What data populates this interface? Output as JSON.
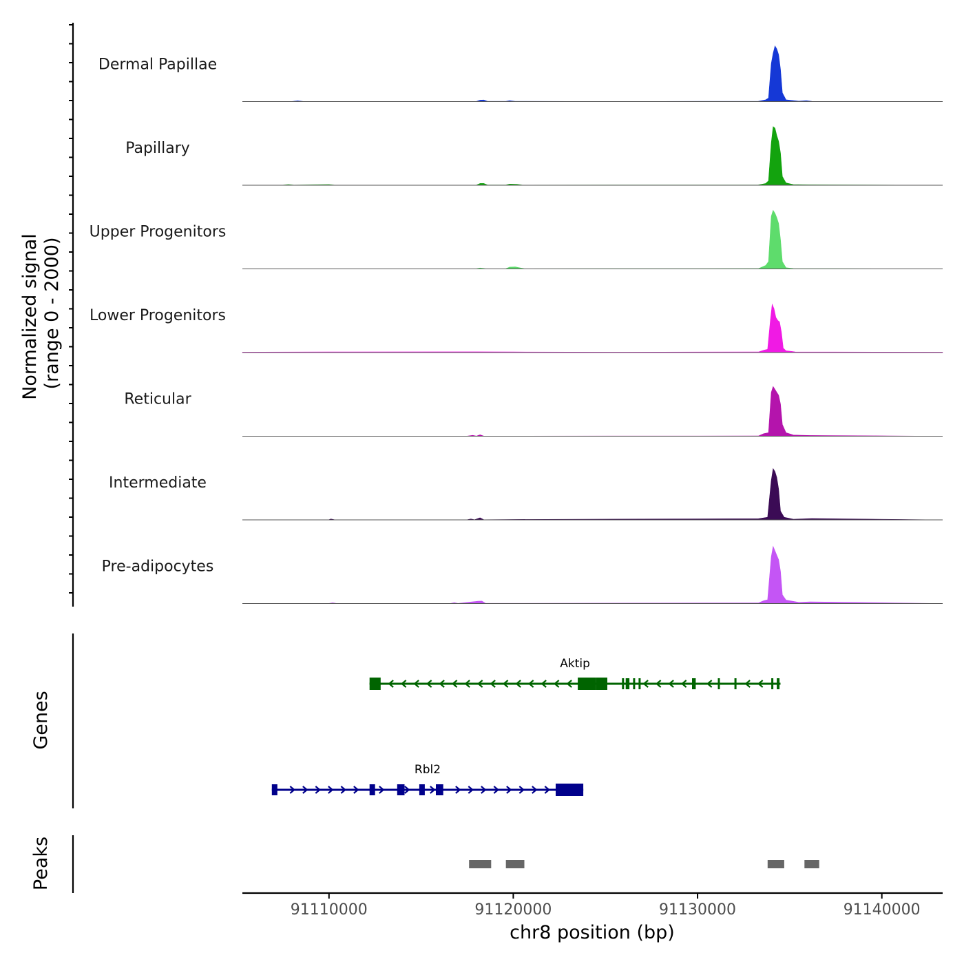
{
  "chart_data": {
    "type": "area",
    "title": "",
    "chromosome": "chr8",
    "xlabel": "chr8 position (bp)",
    "ylabel_line1": "Normalized signal",
    "ylabel_line2": "(range 0 - 2000)",
    "xlim": [
      91105300,
      91143300
    ],
    "x_ticks": [
      91110000,
      91120000,
      91130000,
      91140000
    ],
    "x_tick_labels": [
      "91110000",
      "91120000",
      "91130000",
      "91140000"
    ],
    "signal_range": [
      0,
      2000
    ],
    "series": [
      {
        "name": "Dermal Papillae",
        "color": "#1538d6",
        "points": [
          [
            91105300,
            0
          ],
          [
            91108000,
            5
          ],
          [
            91108300,
            25
          ],
          [
            91108600,
            5
          ],
          [
            91113000,
            3
          ],
          [
            91118000,
            5
          ],
          [
            91118200,
            50
          ],
          [
            91118400,
            55
          ],
          [
            91118600,
            8
          ],
          [
            91119600,
            8
          ],
          [
            91119800,
            30
          ],
          [
            91120100,
            8
          ],
          [
            91126000,
            3
          ],
          [
            91133300,
            10
          ],
          [
            91133700,
            60
          ],
          [
            91133850,
            120
          ],
          [
            91134000,
            1300
          ],
          [
            91134100,
            1650
          ],
          [
            91134200,
            1900
          ],
          [
            91134300,
            1800
          ],
          [
            91134400,
            1600
          ],
          [
            91134500,
            1100
          ],
          [
            91134600,
            300
          ],
          [
            91134800,
            60
          ],
          [
            91135500,
            15
          ],
          [
            91135900,
            30
          ],
          [
            91136200,
            8
          ],
          [
            91143300,
            0
          ]
        ]
      },
      {
        "name": "Papillary",
        "color": "#13a30e",
        "points": [
          [
            91105300,
            0
          ],
          [
            91107500,
            5
          ],
          [
            91107800,
            20
          ],
          [
            91108100,
            5
          ],
          [
            91110000,
            20
          ],
          [
            91110300,
            5
          ],
          [
            91118000,
            5
          ],
          [
            91118200,
            60
          ],
          [
            91118400,
            60
          ],
          [
            91118600,
            8
          ],
          [
            91119600,
            8
          ],
          [
            91119800,
            40
          ],
          [
            91120200,
            30
          ],
          [
            91120500,
            5
          ],
          [
            91133300,
            10
          ],
          [
            91133700,
            60
          ],
          [
            91133850,
            150
          ],
          [
            91134000,
            1450
          ],
          [
            91134100,
            2000
          ],
          [
            91134200,
            1950
          ],
          [
            91134300,
            1700
          ],
          [
            91134400,
            1500
          ],
          [
            91134500,
            1100
          ],
          [
            91134600,
            300
          ],
          [
            91134800,
            80
          ],
          [
            91135200,
            20
          ],
          [
            91136000,
            15
          ],
          [
            91143300,
            0
          ]
        ]
      },
      {
        "name": "Upper Progenitors",
        "color": "#5edc6c",
        "points": [
          [
            91105300,
            0
          ],
          [
            91110000,
            5
          ],
          [
            91118000,
            5
          ],
          [
            91118200,
            30
          ],
          [
            91118500,
            5
          ],
          [
            91119600,
            8
          ],
          [
            91119800,
            60
          ],
          [
            91120100,
            70
          ],
          [
            91120400,
            30
          ],
          [
            91120600,
            5
          ],
          [
            91133300,
            10
          ],
          [
            91133700,
            120
          ],
          [
            91133850,
            250
          ],
          [
            91134000,
            1800
          ],
          [
            91134100,
            2000
          ],
          [
            91134200,
            1900
          ],
          [
            91134300,
            1750
          ],
          [
            91134400,
            1550
          ],
          [
            91134500,
            1000
          ],
          [
            91134600,
            250
          ],
          [
            91134800,
            40
          ],
          [
            91135200,
            10
          ],
          [
            91143300,
            0
          ]
        ]
      },
      {
        "name": "Lower Progenitors",
        "color": "#f01ae4",
        "points": [
          [
            91105300,
            0
          ],
          [
            91105300,
            15
          ],
          [
            91110000,
            20
          ],
          [
            91118000,
            25
          ],
          [
            91120000,
            20
          ],
          [
            91126000,
            15
          ],
          [
            91133300,
            20
          ],
          [
            91133600,
            80
          ],
          [
            91133800,
            110
          ],
          [
            91133950,
            1100
          ],
          [
            91134050,
            1650
          ],
          [
            91134150,
            1500
          ],
          [
            91134250,
            1200
          ],
          [
            91134350,
            1100
          ],
          [
            91134450,
            1050
          ],
          [
            91134550,
            700
          ],
          [
            91134650,
            150
          ],
          [
            91134800,
            60
          ],
          [
            91135100,
            40
          ],
          [
            91135300,
            20
          ],
          [
            91143300,
            15
          ]
        ]
      },
      {
        "name": "Reticular",
        "color": "#b414ac",
        "points": [
          [
            91105300,
            0
          ],
          [
            91110000,
            5
          ],
          [
            91117500,
            5
          ],
          [
            91117800,
            30
          ],
          [
            91118000,
            5
          ],
          [
            91118200,
            50
          ],
          [
            91118400,
            5
          ],
          [
            91133300,
            10
          ],
          [
            91133600,
            90
          ],
          [
            91133850,
            120
          ],
          [
            91134000,
            1500
          ],
          [
            91134100,
            1700
          ],
          [
            91134200,
            1600
          ],
          [
            91134300,
            1500
          ],
          [
            91134400,
            1400
          ],
          [
            91134500,
            1100
          ],
          [
            91134600,
            400
          ],
          [
            91134800,
            120
          ],
          [
            91135200,
            40
          ],
          [
            91136100,
            25
          ],
          [
            91143300,
            0
          ]
        ]
      },
      {
        "name": "Intermediate",
        "color": "#3b0b55",
        "points": [
          [
            91105300,
            0
          ],
          [
            91110000,
            5
          ],
          [
            91110100,
            30
          ],
          [
            91110300,
            5
          ],
          [
            91117500,
            5
          ],
          [
            91117700,
            30
          ],
          [
            91117900,
            5
          ],
          [
            91118200,
            70
          ],
          [
            91118400,
            5
          ],
          [
            91120200,
            15
          ],
          [
            91133300,
            40
          ],
          [
            91133600,
            70
          ],
          [
            91133800,
            90
          ],
          [
            91134000,
            1350
          ],
          [
            91134100,
            1750
          ],
          [
            91134200,
            1650
          ],
          [
            91134300,
            1450
          ],
          [
            91134400,
            1050
          ],
          [
            91134500,
            300
          ],
          [
            91134700,
            90
          ],
          [
            91135200,
            20
          ],
          [
            91136200,
            45
          ],
          [
            91143300,
            0
          ]
        ]
      },
      {
        "name": "Pre-adipocytes",
        "color": "#c455f5",
        "points": [
          [
            91105300,
            0
          ],
          [
            91110000,
            5
          ],
          [
            91110200,
            25
          ],
          [
            91110400,
            5
          ],
          [
            91116600,
            5
          ],
          [
            91116800,
            30
          ],
          [
            91117000,
            5
          ],
          [
            91118100,
            80
          ],
          [
            91118300,
            85
          ],
          [
            91118500,
            8
          ],
          [
            91133300,
            20
          ],
          [
            91133600,
            100
          ],
          [
            91133800,
            130
          ],
          [
            91134000,
            1600
          ],
          [
            91134100,
            1950
          ],
          [
            91134200,
            1800
          ],
          [
            91134300,
            1650
          ],
          [
            91134400,
            1500
          ],
          [
            91134500,
            1100
          ],
          [
            91134600,
            300
          ],
          [
            91134800,
            120
          ],
          [
            91135500,
            40
          ],
          [
            91136100,
            60
          ],
          [
            91143300,
            0
          ]
        ]
      }
    ],
    "genes": {
      "track_label": "Genes",
      "items": [
        {
          "name": "Aktip",
          "strand": "-",
          "color": "#006400",
          "start": 91112200,
          "end": 91134500,
          "exons": [
            [
              91112200,
              91112800,
              "utr"
            ],
            [
              91123500,
              91124500,
              "utr"
            ],
            [
              91124500,
              91125100,
              "utr"
            ],
            [
              91125900,
              91126000,
              "cds"
            ],
            [
              91126100,
              91126300,
              "cds"
            ],
            [
              91126500,
              91126600,
              "cds"
            ],
            [
              91126800,
              91126900,
              "cds"
            ],
            [
              91129700,
              91129900,
              "cds"
            ],
            [
              91131100,
              91131200,
              "cds"
            ],
            [
              91132000,
              91132100,
              "cds"
            ],
            [
              91134000,
              91134100,
              "cds"
            ],
            [
              91134300,
              91134450,
              "cds"
            ]
          ]
        },
        {
          "name": "Rbl2",
          "strand": "+",
          "color": "#00008b",
          "start": 91106900,
          "end": 91123800,
          "exons": [
            [
              91106900,
              91107200,
              "cds"
            ],
            [
              91112200,
              91112500,
              "cds"
            ],
            [
              91113700,
              91114100,
              "cds"
            ],
            [
              91114900,
              91115200,
              "cds"
            ],
            [
              91115800,
              91116200,
              "cds"
            ],
            [
              91122300,
              91123800,
              "utr"
            ]
          ]
        }
      ]
    },
    "peaks": {
      "track_label": "Peaks",
      "color": "#666666",
      "items": [
        [
          91117600,
          91118800
        ],
        [
          91119600,
          91120600
        ],
        [
          91133800,
          91134700
        ],
        [
          91135800,
          91136600
        ]
      ]
    }
  }
}
